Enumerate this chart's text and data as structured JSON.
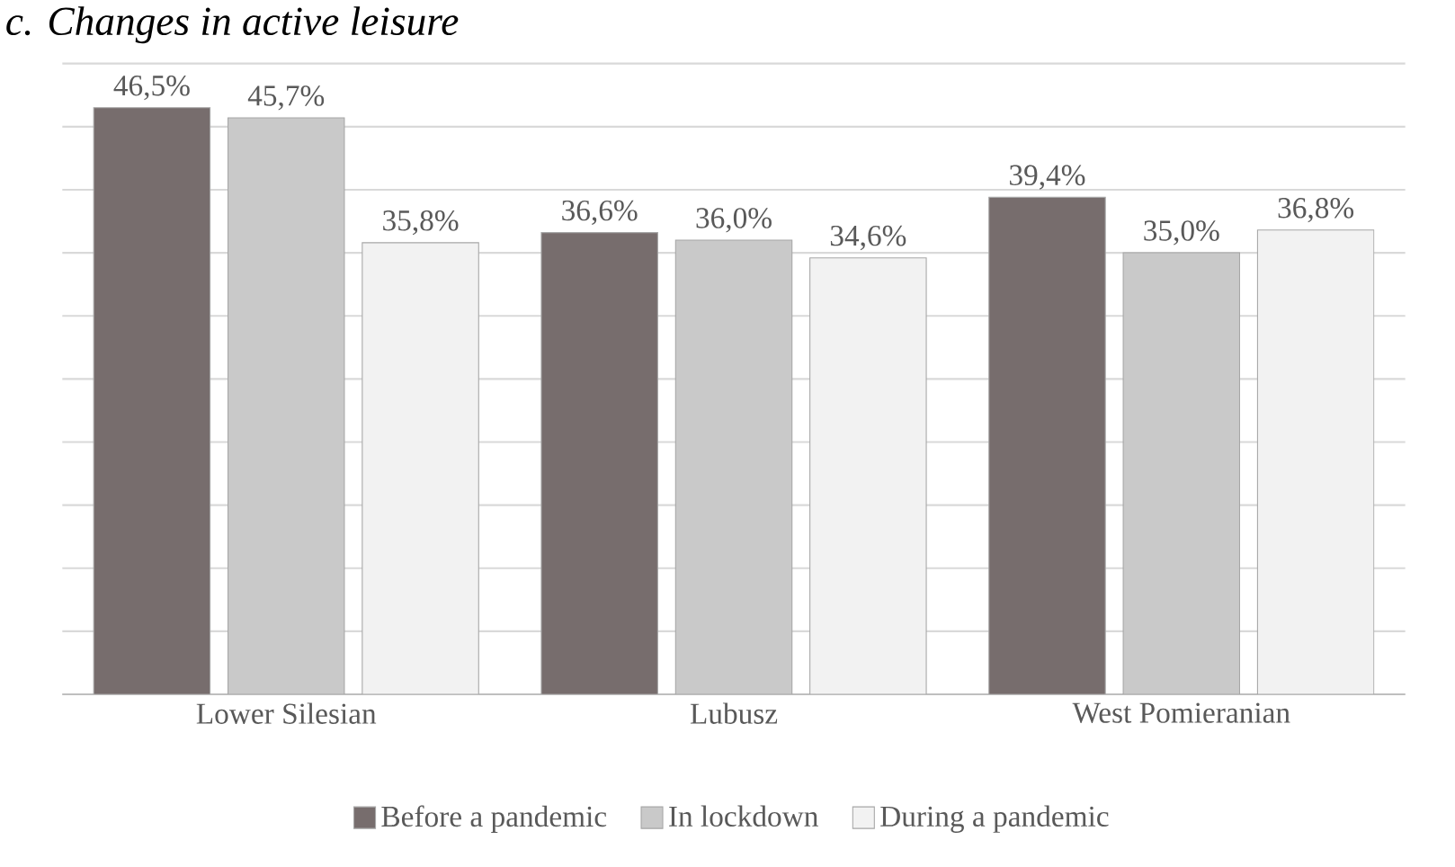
{
  "chart_data": {
    "type": "bar",
    "title": "c. Changes in active leisure",
    "categories": [
      "Lower Silesian",
      "Lubusz",
      "West Pomieranian"
    ],
    "series": [
      {
        "name": "Before a pandemic",
        "color": "#776d6d",
        "values": [
          46.5,
          36.6,
          39.4
        ],
        "value_labels": [
          "46,5%",
          "36,6%",
          "39,4%"
        ]
      },
      {
        "name": "In lockdown",
        "color": "#c9c9c9",
        "values": [
          45.7,
          36.0,
          35.0
        ],
        "value_labels": [
          "45,7%",
          "36,0%",
          "35,0%"
        ]
      },
      {
        "name": "During a pandemic",
        "color": "#f2f2f2",
        "values": [
          35.8,
          34.6,
          36.8
        ],
        "value_labels": [
          "35,8%",
          "34,6%",
          "36,8%"
        ]
      }
    ],
    "ylim": [
      0,
      50
    ],
    "yticks": [
      {
        "value": 0,
        "label": null
      },
      {
        "value": 5,
        "label": null
      },
      {
        "value": 10,
        "label": null
      },
      {
        "value": 15,
        "label": null
      },
      {
        "value": 20,
        "label": null
      },
      {
        "value": 25,
        "label": null
      },
      {
        "value": 30,
        "label": null
      },
      {
        "value": 35,
        "label": null
      },
      {
        "value": 40,
        "label": null
      },
      {
        "value": 45,
        "label": null
      },
      {
        "value": 50,
        "label": null
      }
    ],
    "grid": "y",
    "legend": "bottom",
    "tick_labels": "x"
  }
}
